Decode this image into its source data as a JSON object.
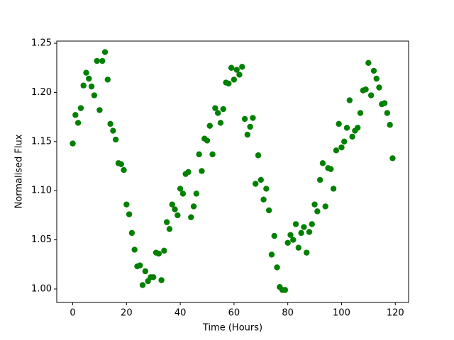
{
  "chart_data": {
    "type": "scatter",
    "xlabel": "Time (Hours)",
    "ylabel": "Normalised Flux",
    "color": "#008000",
    "x": [
      0,
      1,
      2,
      3,
      4,
      5,
      6,
      7,
      8,
      9,
      10,
      11,
      12,
      13,
      14,
      15,
      16,
      17,
      18,
      19,
      20,
      21,
      22,
      23,
      24,
      25,
      26,
      27,
      28,
      29,
      30,
      31,
      32,
      33,
      34,
      35,
      36,
      37,
      38,
      39,
      40,
      41,
      42,
      43,
      44,
      45,
      46,
      47,
      48,
      49,
      50,
      51,
      52,
      53,
      54,
      55,
      56,
      57,
      58,
      59,
      60,
      61,
      62,
      63,
      64,
      65,
      66,
      67,
      68,
      69,
      70,
      71,
      72,
      73,
      74,
      75,
      76,
      77,
      78,
      79,
      80,
      81,
      82,
      83,
      84,
      85,
      86,
      87,
      88,
      89,
      90,
      91,
      92,
      93,
      94,
      95,
      96,
      97,
      98,
      99,
      100,
      101,
      102,
      103,
      104,
      105,
      106,
      107,
      108,
      109,
      110,
      111,
      112,
      113,
      114,
      115,
      116,
      117,
      118,
      119
    ],
    "values": [
      1.148,
      1.177,
      1.169,
      1.184,
      1.207,
      1.22,
      1.214,
      1.206,
      1.197,
      1.232,
      1.182,
      1.232,
      1.241,
      1.213,
      1.168,
      1.161,
      1.152,
      1.128,
      1.127,
      1.121,
      1.086,
      1.076,
      1.057,
      1.04,
      1.023,
      1.024,
      1.004,
      1.018,
      1.008,
      1.012,
      1.012,
      1.037,
      1.036,
      1.009,
      1.039,
      1.068,
      1.061,
      1.086,
      1.081,
      1.075,
      1.102,
      1.097,
      1.117,
      1.119,
      1.073,
      1.084,
      1.097,
      1.137,
      1.12,
      1.153,
      1.151,
      1.166,
      1.137,
      1.184,
      1.179,
      1.169,
      1.183,
      1.21,
      1.209,
      1.225,
      1.213,
      1.223,
      1.218,
      1.226,
      1.173,
      1.157,
      1.165,
      1.174,
      1.107,
      1.136,
      1.111,
      1.091,
      1.102,
      1.08,
      1.035,
      1.054,
      1.022,
      1.002,
      0.999,
      0.999,
      1.047,
      1.055,
      1.05,
      1.066,
      1.042,
      1.057,
      1.063,
      1.037,
      1.058,
      1.066,
      1.086,
      1.079,
      1.111,
      1.128,
      1.084,
      1.123,
      1.122,
      1.102,
      1.141,
      1.168,
      1.144,
      1.15,
      1.164,
      1.192,
      1.155,
      1.161,
      1.164,
      1.179,
      1.202,
      1.203,
      1.23,
      1.197,
      1.222,
      1.214,
      1.205,
      1.188,
      1.189,
      1.179,
      1.167,
      1.133
    ],
    "xlim": [
      -5.95,
      124.95
    ],
    "ylim": [
      0.9863,
      1.2522
    ],
    "xticks": [
      0,
      20,
      40,
      60,
      80,
      100,
      120
    ],
    "yticks": [
      {
        "value": 1.0,
        "label": "1.00"
      },
      1.05,
      {
        "value": 1.1,
        "label": "1.10"
      },
      1.15,
      {
        "value": 1.2,
        "label": "1.20"
      },
      1.25
    ]
  }
}
